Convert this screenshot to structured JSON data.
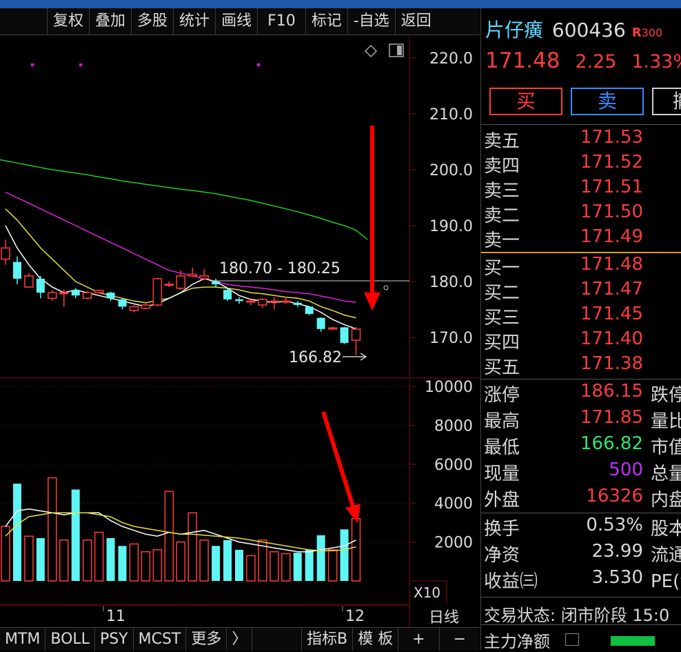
{
  "toolbar": {
    "items": [
      "复权",
      "叠加",
      "多股",
      "统计",
      "画线",
      "F10",
      "标记",
      "-自选",
      "返回"
    ]
  },
  "price_axis": [
    "220.0",
    "210.0",
    "200.0",
    "190.0",
    "180.0",
    "170.0"
  ],
  "volume_axis": [
    "10000",
    "8000",
    "6000",
    "4000",
    "2000"
  ],
  "volume_unit": "X10",
  "range_label": "180.70 - 180.25",
  "low_label": "166.82",
  "x_labels": [
    "11",
    "12"
  ],
  "period_label": "日线",
  "chart_data": {
    "type": "candlestick",
    "price_ylim": [
      166,
      221
    ],
    "volume_ylim": [
      0,
      10800
    ],
    "candles": [
      {
        "o": 184.0,
        "c": 186.0,
        "h": 187.5,
        "l": 183.0
      },
      {
        "o": 183.5,
        "c": 180.5,
        "h": 184.5,
        "l": 179.5
      },
      {
        "o": 179.0,
        "c": 181.0,
        "h": 181.5,
        "l": 179.0
      },
      {
        "o": 180.5,
        "c": 178.0,
        "h": 181.0,
        "l": 177.0
      },
      {
        "o": 177.0,
        "c": 178.0,
        "h": 178.5,
        "l": 176.5
      },
      {
        "o": 178.0,
        "c": 178.0,
        "h": 178.6,
        "l": 175.5
      },
      {
        "o": 178.5,
        "c": 177.5,
        "h": 178.8,
        "l": 177.0
      },
      {
        "o": 177.0,
        "c": 178.0,
        "h": 178.3,
        "l": 176.8
      },
      {
        "o": 178.0,
        "c": 178.4,
        "h": 178.5,
        "l": 177.8
      },
      {
        "o": 178.0,
        "c": 177.0,
        "h": 178.2,
        "l": 176.5
      },
      {
        "o": 176.8,
        "c": 175.5,
        "h": 177.0,
        "l": 175.0
      },
      {
        "o": 174.8,
        "c": 175.5,
        "h": 175.8,
        "l": 174.5
      },
      {
        "o": 175.2,
        "c": 175.8,
        "h": 176.2,
        "l": 175.0
      },
      {
        "o": 175.8,
        "c": 180.5,
        "h": 180.7,
        "l": 175.5
      },
      {
        "o": 179.5,
        "c": 179.5,
        "h": 180.0,
        "l": 179.0
      },
      {
        "o": 178.8,
        "c": 181.0,
        "h": 182.0,
        "l": 178.5
      },
      {
        "o": 181.0,
        "c": 181.3,
        "h": 182.5,
        "l": 180.8
      },
      {
        "o": 180.5,
        "c": 181.0,
        "h": 182.2,
        "l": 180.2
      },
      {
        "o": 180.0,
        "c": 179.5,
        "h": 180.5,
        "l": 179.0
      },
      {
        "o": 178.5,
        "c": 176.8,
        "h": 178.7,
        "l": 176.5
      },
      {
        "o": 176.8,
        "c": 176.5,
        "h": 177.2,
        "l": 176.0
      },
      {
        "o": 176.5,
        "c": 176.5,
        "h": 177.0,
        "l": 175.8
      },
      {
        "o": 175.8,
        "c": 176.8,
        "h": 177.0,
        "l": 175.2
      },
      {
        "o": 176.5,
        "c": 176.5,
        "h": 177.2,
        "l": 175.0
      },
      {
        "o": 176.5,
        "c": 176.5,
        "h": 177.2,
        "l": 176.0
      },
      {
        "o": 176.2,
        "c": 175.8,
        "h": 176.5,
        "l": 175.5
      },
      {
        "o": 175.5,
        "c": 174.2,
        "h": 175.5,
        "l": 174.0
      },
      {
        "o": 173.5,
        "c": 171.5,
        "h": 173.6,
        "l": 171.0
      },
      {
        "o": 171.5,
        "c": 171.7,
        "h": 171.9,
        "l": 171.3
      },
      {
        "o": 171.8,
        "c": 169.0,
        "h": 171.9,
        "l": 168.8
      },
      {
        "o": 169.5,
        "c": 171.48,
        "h": 171.85,
        "l": 166.82
      }
    ],
    "volumes": [
      2800,
      5000,
      2300,
      2200,
      5300,
      2100,
      4700,
      2100,
      2500,
      2200,
      1800,
      1900,
      1500,
      1600,
      4600,
      2000,
      3500,
      2100,
      1800,
      2100,
      1600,
      1300,
      2100,
      1500,
      1400,
      1450,
      1600,
      2350,
      1600,
      2650,
      3200
    ],
    "ma_price": {
      "green": {
        "from_index": -1,
        "values": [
          202.0,
          201.6,
          201.2,
          200.8,
          200.4,
          200.0,
          199.7,
          199.4,
          199.1,
          198.7,
          198.4,
          198.0,
          197.7,
          197.4,
          197.1,
          196.8,
          196.5,
          196.3,
          196.0,
          195.7,
          195.3,
          194.9,
          194.5,
          194.0,
          193.5,
          193.0,
          192.5,
          191.9,
          191.3,
          190.6,
          190.0,
          189.2,
          187.5
        ]
      },
      "magenta": {
        "values": [
          196.0,
          195.0,
          194.0,
          193.0,
          192.0,
          191.0,
          190.0,
          189.0,
          188.0,
          187.0,
          186.0,
          185.0,
          184.0,
          183.0,
          182.0,
          181.5,
          181.0,
          180.5,
          180.0,
          179.5,
          179.2,
          179.0,
          178.8,
          178.5,
          178.2,
          178.0,
          177.8,
          177.4,
          177.0,
          176.5,
          176.3
        ]
      },
      "yellow": {
        "values": [
          193.0,
          191.0,
          188.5,
          186.0,
          184.0,
          182.0,
          180.0,
          179.0,
          178.0,
          177.5,
          177.0,
          176.5,
          176.2,
          176.6,
          177.0,
          178.0,
          178.8,
          179.0,
          179.0,
          178.8,
          178.5,
          178.0,
          177.8,
          177.5,
          177.2,
          177.0,
          176.5,
          175.5,
          174.8,
          174.0,
          173.5
        ]
      },
      "white": {
        "values": [
          190.0,
          186.0,
          183.0,
          180.5,
          179.0,
          178.0,
          178.5,
          178.0,
          177.5,
          177.0,
          176.5,
          176.0,
          175.5,
          176.0,
          177.0,
          178.0,
          179.5,
          180.5,
          180.0,
          178.8,
          177.5,
          176.8,
          176.5,
          176.2,
          176.5,
          176.0,
          175.5,
          174.5,
          173.2,
          172.3,
          171.5
        ]
      }
    },
    "ma_volume": {
      "white": [
        2800,
        3600,
        3700,
        3600,
        3500,
        3400,
        3500,
        3500,
        3500,
        3100,
        2800,
        2600,
        2400,
        2300,
        2500,
        2400,
        2500,
        2600,
        2400,
        2200,
        2000,
        1900,
        1800,
        1700,
        1600,
        1500,
        1500,
        1600,
        1700,
        1800,
        2100
      ],
      "yellow": [
        2300,
        2900,
        3300,
        3400,
        3500,
        3500,
        3500,
        3500,
        3400,
        3300,
        3000,
        2800,
        2700,
        2600,
        2500,
        2400,
        2400,
        2350,
        2300,
        2250,
        2200,
        2100,
        2000,
        1900,
        1800,
        1700,
        1600,
        1550,
        1550,
        1600,
        1750
      ]
    }
  },
  "stock": {
    "name": "片仔癀",
    "code": "600436",
    "badge": "R",
    "badge_sub": "300",
    "price": "171.48",
    "change": "2.25",
    "change_pct": "1.33%",
    "buy_label": "买",
    "sell_label": "卖",
    "third_label": "撤"
  },
  "sell_book": [
    {
      "label": "卖五",
      "price": "171.53"
    },
    {
      "label": "卖四",
      "price": "171.52"
    },
    {
      "label": "卖三",
      "price": "171.51"
    },
    {
      "label": "卖二",
      "price": "171.50"
    },
    {
      "label": "卖一",
      "price": "171.49"
    }
  ],
  "buy_book": [
    {
      "label": "买一",
      "price": "171.48"
    },
    {
      "label": "买二",
      "price": "171.47"
    },
    {
      "label": "买三",
      "price": "171.45"
    },
    {
      "label": "买四",
      "price": "171.40"
    },
    {
      "label": "买五",
      "price": "171.38"
    }
  ],
  "stats": [
    {
      "label": "涨停",
      "value": "186.15",
      "color": "#ff3c3c",
      "label2": "跌停"
    },
    {
      "label": "最高",
      "value": "171.85",
      "color": "#ff3c3c",
      "label2": "量比"
    },
    {
      "label": "最低",
      "value": "166.82",
      "color": "#2ee86a",
      "label2": "市值"
    },
    {
      "label": "现量",
      "value": "500",
      "color": "#c030ff",
      "label2": "总量"
    },
    {
      "label": "外盘",
      "value": "16326",
      "color": "#ff3c3c",
      "label2": "内盘"
    }
  ],
  "stats2": [
    {
      "label": "换手",
      "value": "0.53%",
      "color": "#d8d8d8",
      "label2": "股本"
    },
    {
      "label": "净资",
      "value": "23.99",
      "color": "#d8d8d8",
      "label2": "流通"
    },
    {
      "label": "收益㈢",
      "value": "3.530",
      "color": "#d8d8d8",
      "label2": "PE(动"
    }
  ],
  "trade_status": "交易状态: 闭市阶段 15:0",
  "main_flow_label": "主力净额",
  "bottombar": {
    "left": [
      "MTM",
      "BOLL",
      "PSY",
      "MCST",
      "更多",
      "〉"
    ],
    "right": [
      "指标B",
      "模 板",
      "+",
      "−"
    ]
  },
  "colors": {
    "up": "#ff3c3c",
    "down": "#5ff5f5",
    "grid": "#3a0000",
    "accent": "#1f5aa8"
  }
}
